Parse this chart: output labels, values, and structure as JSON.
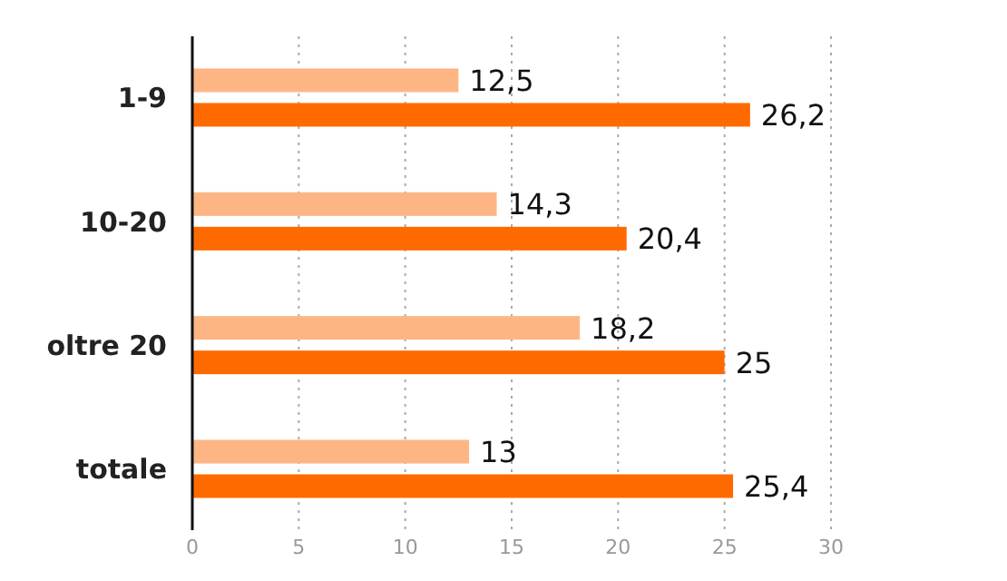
{
  "chart_data": {
    "type": "bar",
    "orientation": "horizontal",
    "categories": [
      "1-9",
      "10-20",
      "oltre 20",
      "totale"
    ],
    "series": [
      {
        "color": "#fdb683",
        "values": [
          12.5,
          14.3,
          18.2,
          13
        ],
        "value_labels": [
          "12,5",
          "14,3",
          "18,2",
          "13"
        ]
      },
      {
        "color": "#ff6a00",
        "values": [
          26.2,
          20.4,
          25,
          25.4
        ],
        "value_labels": [
          "26,2",
          "20,4",
          "25",
          "25,4"
        ]
      }
    ],
    "xlim": [
      0,
      30
    ],
    "xticks": [
      0,
      5,
      10,
      15,
      20,
      25,
      30
    ],
    "grid": "x"
  }
}
